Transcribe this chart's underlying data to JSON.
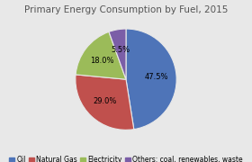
{
  "title": "Primary Energy Consumption by Fuel, 2015",
  "slices": [
    47.5,
    29.0,
    18.0,
    5.5
  ],
  "labels": [
    "47.5%",
    "29.0%",
    "18.0%",
    "5.5%"
  ],
  "colors": [
    "#4e74b8",
    "#c0504d",
    "#9bbb59",
    "#7b5ea7"
  ],
  "legend_labels": [
    "Oil",
    "Natural Gas",
    "Electricity",
    "Others: coal, renewables, waste"
  ],
  "startangle": 90,
  "background_color": "#e8e8e8",
  "title_fontsize": 7.5,
  "legend_fontsize": 5.5,
  "autopct_fontsize": 6.0
}
